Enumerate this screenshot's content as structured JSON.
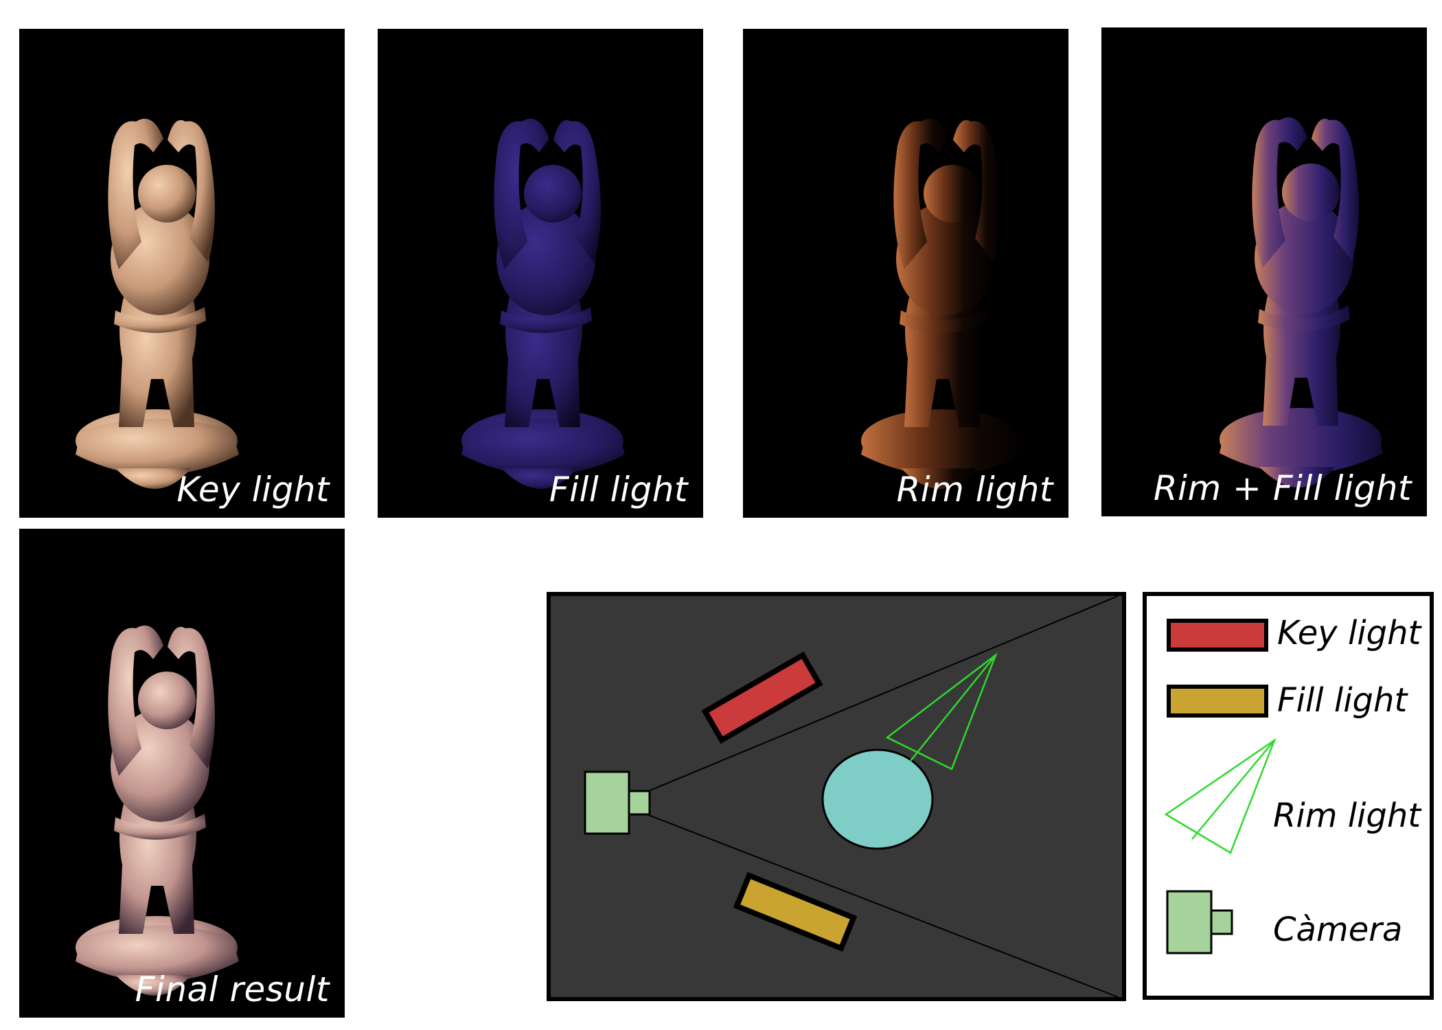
{
  "panels": [
    {
      "caption": "Key light",
      "tone": "key"
    },
    {
      "caption": "Fill light",
      "tone": "fill"
    },
    {
      "caption": "Rim light",
      "tone": "rim"
    },
    {
      "caption": "Rim + Fill light",
      "tone": "rimfill"
    },
    {
      "caption": "Final result",
      "tone": "final"
    }
  ],
  "legend": {
    "key": "Key light",
    "fill": "Fill light",
    "rim": "Rim light",
    "camera": "Càmera"
  },
  "colors": {
    "key_light": "#cc3b3b",
    "fill_light": "#c9a430",
    "rim_light": "#2ed82e",
    "camera": "#a6d39c",
    "subject": "#7fcdc7",
    "diagram_bg": "#383838"
  },
  "icons": {
    "statue": "laughing-buddha-statue-icon",
    "camera": "camera-icon",
    "rim": "cone-light-icon"
  }
}
